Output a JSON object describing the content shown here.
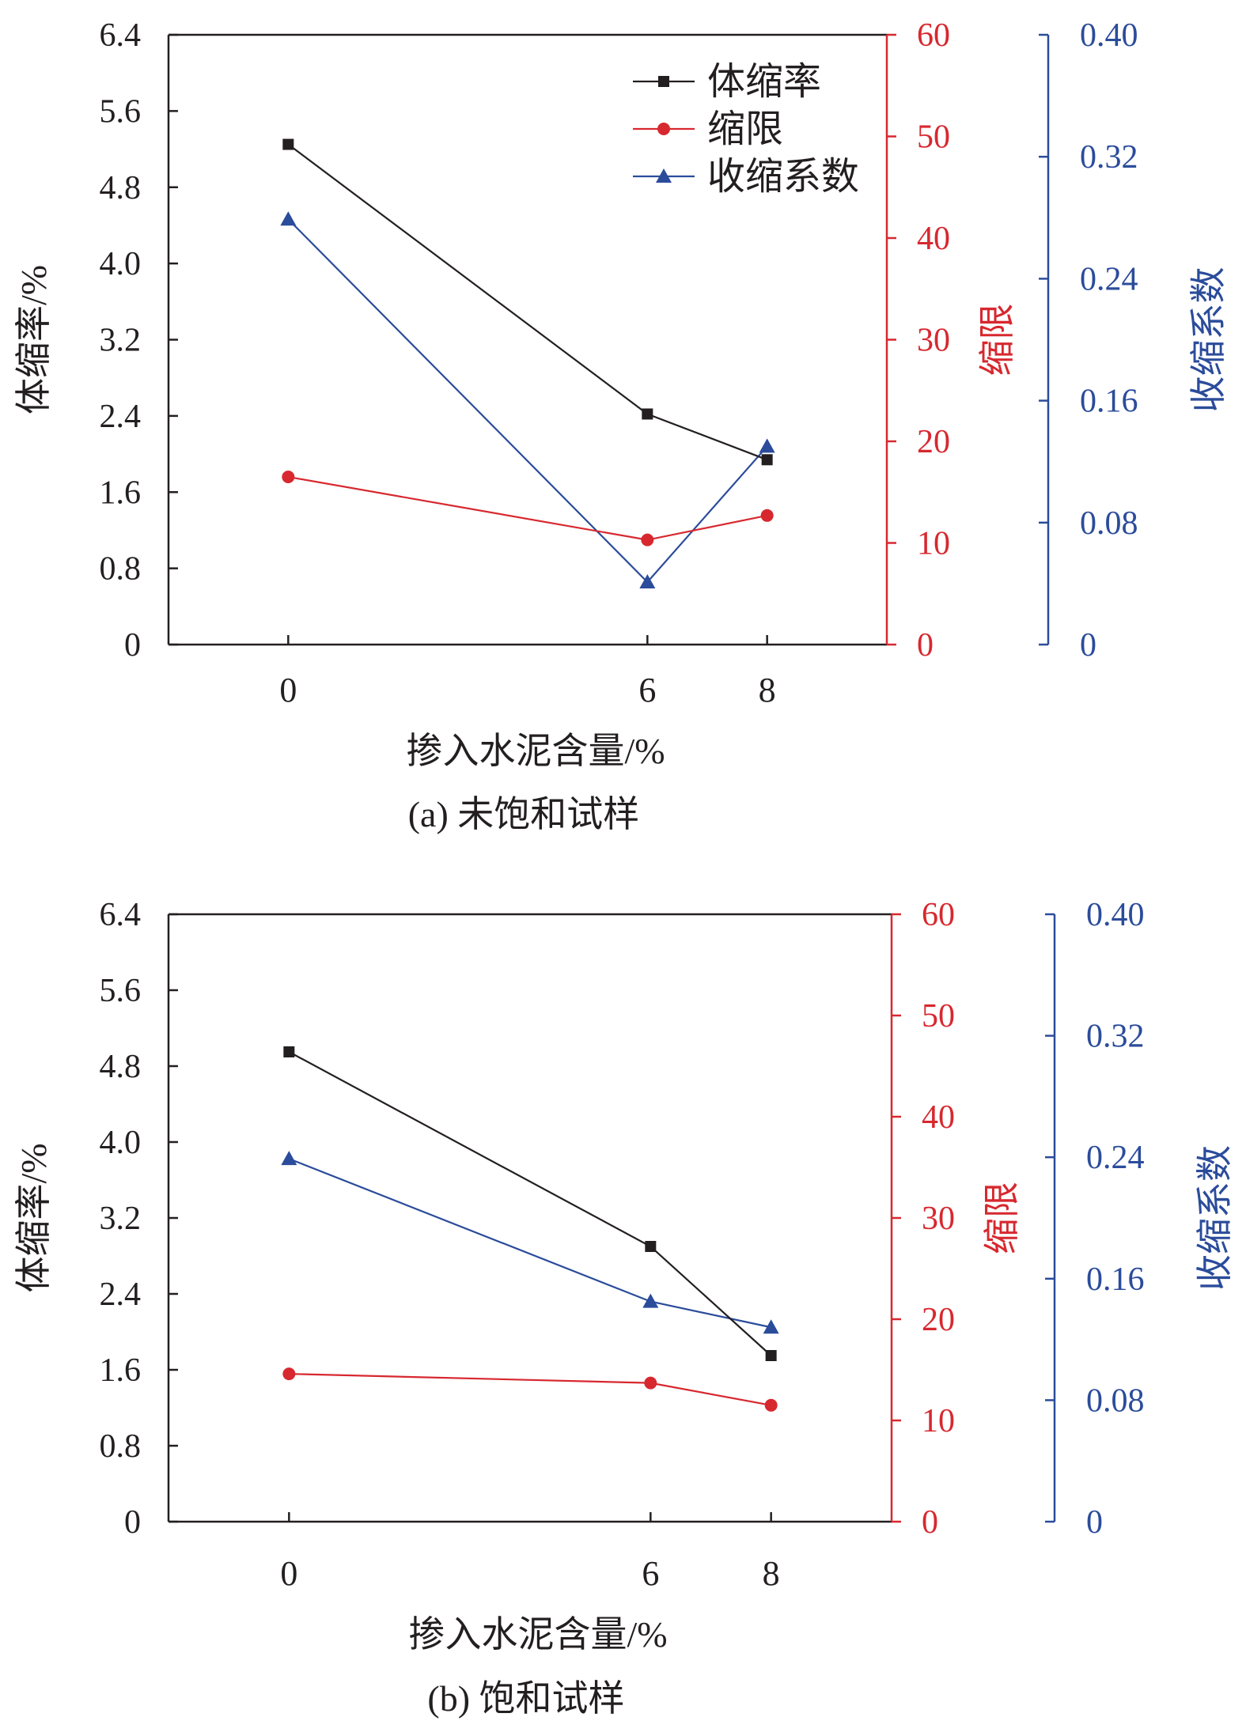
{
  "chart_data": [
    {
      "type": "line",
      "caption": "(a) 未饱和试样",
      "xlabel": "掺入水泥含量/%",
      "categories": [
        "0",
        "6",
        "8"
      ],
      "x": [
        0,
        6,
        8
      ],
      "xlim": [
        -2,
        10
      ],
      "legend_position": "top-right",
      "axes": {
        "left": {
          "label": "体缩率/%",
          "ylim": [
            0,
            6.4
          ],
          "ticks": [
            "0",
            "0.8",
            "1.6",
            "2.4",
            "3.2",
            "4.0",
            "4.8",
            "5.6",
            "6.4"
          ],
          "color": "#231f20"
        },
        "right1": {
          "label": "缩限",
          "ylim": [
            0,
            60
          ],
          "ticks": [
            "0",
            "10",
            "20",
            "30",
            "40",
            "50",
            "60"
          ],
          "color": "#d7282f"
        },
        "right2": {
          "label": "收缩系数",
          "ylim": [
            0,
            0.4
          ],
          "ticks": [
            "0",
            "0.08",
            "0.16",
            "0.24",
            "0.32",
            "0.40"
          ],
          "color": "#2b4c9b"
        }
      },
      "series": [
        {
          "name": "体缩率",
          "axis": "left",
          "marker": "square",
          "color": "#231f20",
          "values": [
            5.25,
            2.42,
            1.94
          ]
        },
        {
          "name": "缩限",
          "axis": "right1",
          "marker": "circle",
          "color": "#d7282f",
          "values": [
            16.5,
            10.3,
            12.7
          ]
        },
        {
          "name": "收缩系数",
          "axis": "right2",
          "marker": "triangle",
          "color": "#2b4c9b",
          "values": [
            0.279,
            0.041,
            0.13
          ]
        }
      ]
    },
    {
      "type": "line",
      "caption": "(b) 饱和试样",
      "xlabel": "掺入水泥含量/%",
      "categories": [
        "0",
        "6",
        "8"
      ],
      "x": [
        0,
        6,
        8
      ],
      "xlim": [
        -2,
        10
      ],
      "legend_position": "",
      "axes": {
        "left": {
          "label": "体缩率/%",
          "ylim": [
            0,
            6.4
          ],
          "ticks": [
            "0",
            "0.8",
            "1.6",
            "2.4",
            "3.2",
            "4.0",
            "4.8",
            "5.6",
            "6.4"
          ],
          "color": "#231f20"
        },
        "right1": {
          "label": "缩限",
          "ylim": [
            0,
            60
          ],
          "ticks": [
            "0",
            "10",
            "20",
            "30",
            "40",
            "50",
            "60"
          ],
          "color": "#d7282f"
        },
        "right2": {
          "label": "收缩系数",
          "ylim": [
            0,
            0.4
          ],
          "ticks": [
            "0",
            "0.08",
            "0.16",
            "0.24",
            "0.32",
            "0.40"
          ],
          "color": "#2b4c9b"
        }
      },
      "series": [
        {
          "name": "体缩率",
          "axis": "left",
          "marker": "square",
          "color": "#231f20",
          "values": [
            4.95,
            2.9,
            1.75
          ]
        },
        {
          "name": "缩限",
          "axis": "right1",
          "marker": "circle",
          "color": "#d7282f",
          "values": [
            14.6,
            13.7,
            11.5
          ]
        },
        {
          "name": "收缩系数",
          "axis": "right2",
          "marker": "triangle",
          "color": "#2b4c9b",
          "values": [
            0.239,
            0.145,
            0.128
          ]
        }
      ]
    }
  ]
}
